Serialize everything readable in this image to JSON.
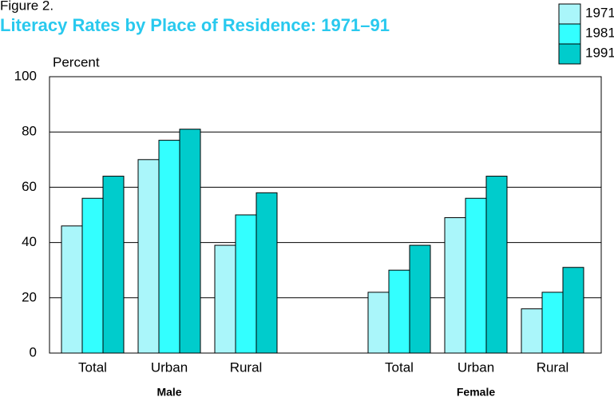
{
  "chart_data": {
    "type": "bar",
    "figure_label": "Figure 2.",
    "title": "Literacy Rates by Place of Residence:  1971–91",
    "y_label": "Percent",
    "categories": [
      "Total",
      "Urban",
      "Rural",
      null,
      "Total",
      "Urban",
      "Rural"
    ],
    "groups": [
      {
        "label": "Male",
        "span": [
          0,
          2
        ]
      },
      {
        "label": "Female",
        "span": [
          4,
          6
        ]
      }
    ],
    "series": [
      {
        "name": "1971",
        "color": "#aaf6fa",
        "values": [
          46,
          70,
          39,
          null,
          22,
          49,
          16
        ]
      },
      {
        "name": "1981",
        "color": "#33ffff",
        "values": [
          56,
          77,
          50,
          null,
          30,
          56,
          22
        ]
      },
      {
        "name": "1991",
        "color": "#00cccc",
        "values": [
          64,
          81,
          58,
          null,
          39,
          64,
          31
        ]
      }
    ],
    "ylim": [
      0,
      100
    ],
    "yticks": [
      0,
      20,
      40,
      60,
      80,
      100
    ],
    "grid": true,
    "legend": "top-right"
  }
}
